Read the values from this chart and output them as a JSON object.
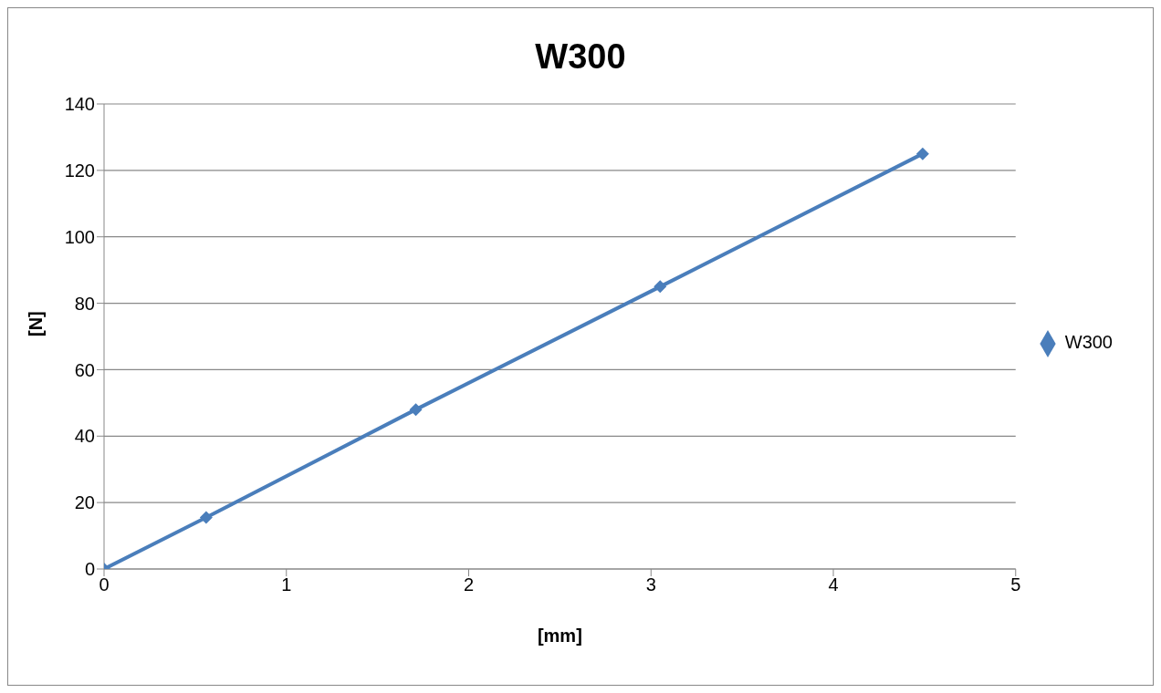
{
  "chart_data": {
    "type": "line",
    "title": "W300",
    "xlabel": "[mm]",
    "ylabel": "[N]",
    "x": [
      0,
      0.56,
      1.71,
      3.05,
      4.49
    ],
    "series": [
      {
        "name": "W300",
        "color": "#4a7ebb",
        "values": [
          0,
          15.5,
          48,
          85,
          125
        ]
      }
    ],
    "xlim": [
      0,
      5
    ],
    "xticks": [
      0,
      1,
      2,
      3,
      4,
      5
    ],
    "ylim": [
      0,
      140
    ],
    "yticks": [
      0,
      20,
      40,
      60,
      80,
      100,
      120,
      140
    ],
    "grid": "y",
    "legend": "right",
    "marker": "diamond",
    "line_style": "solid"
  }
}
